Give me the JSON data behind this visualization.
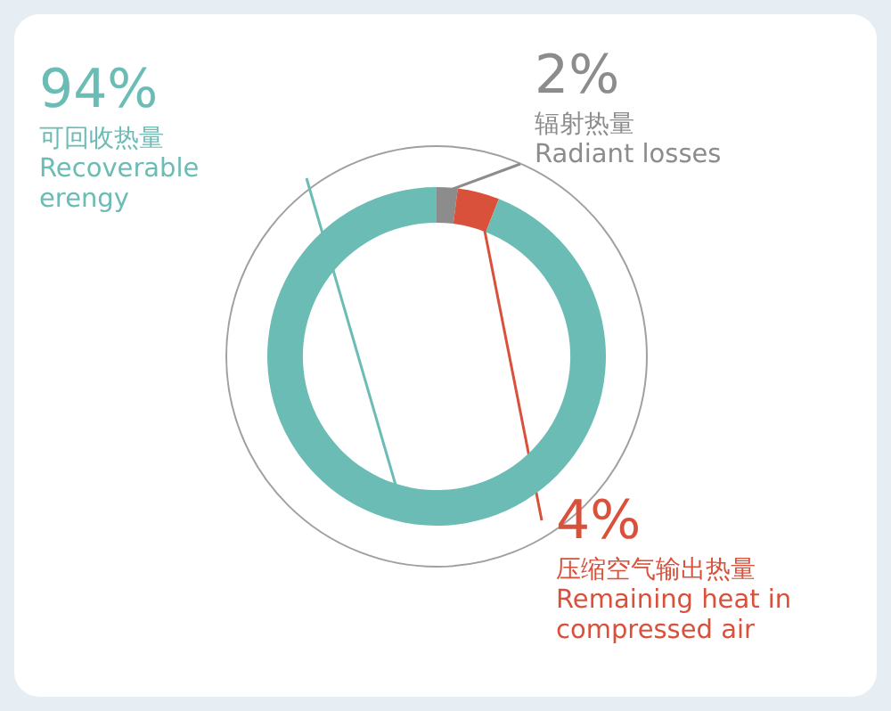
{
  "chart_data": {
    "type": "donut",
    "categories": [
      "辐射热量\nRadiant losses",
      "压缩空气输出热量\nRemaining heat in\ncompressed air",
      "可回收热量\nRecoverable\nerengy"
    ],
    "values": [
      2,
      4,
      94
    ],
    "value_labels": [
      "2%",
      "4%",
      "94%"
    ],
    "colors": [
      "#8c8c8c",
      "#d9503b",
      "#6cbcb6"
    ]
  }
}
